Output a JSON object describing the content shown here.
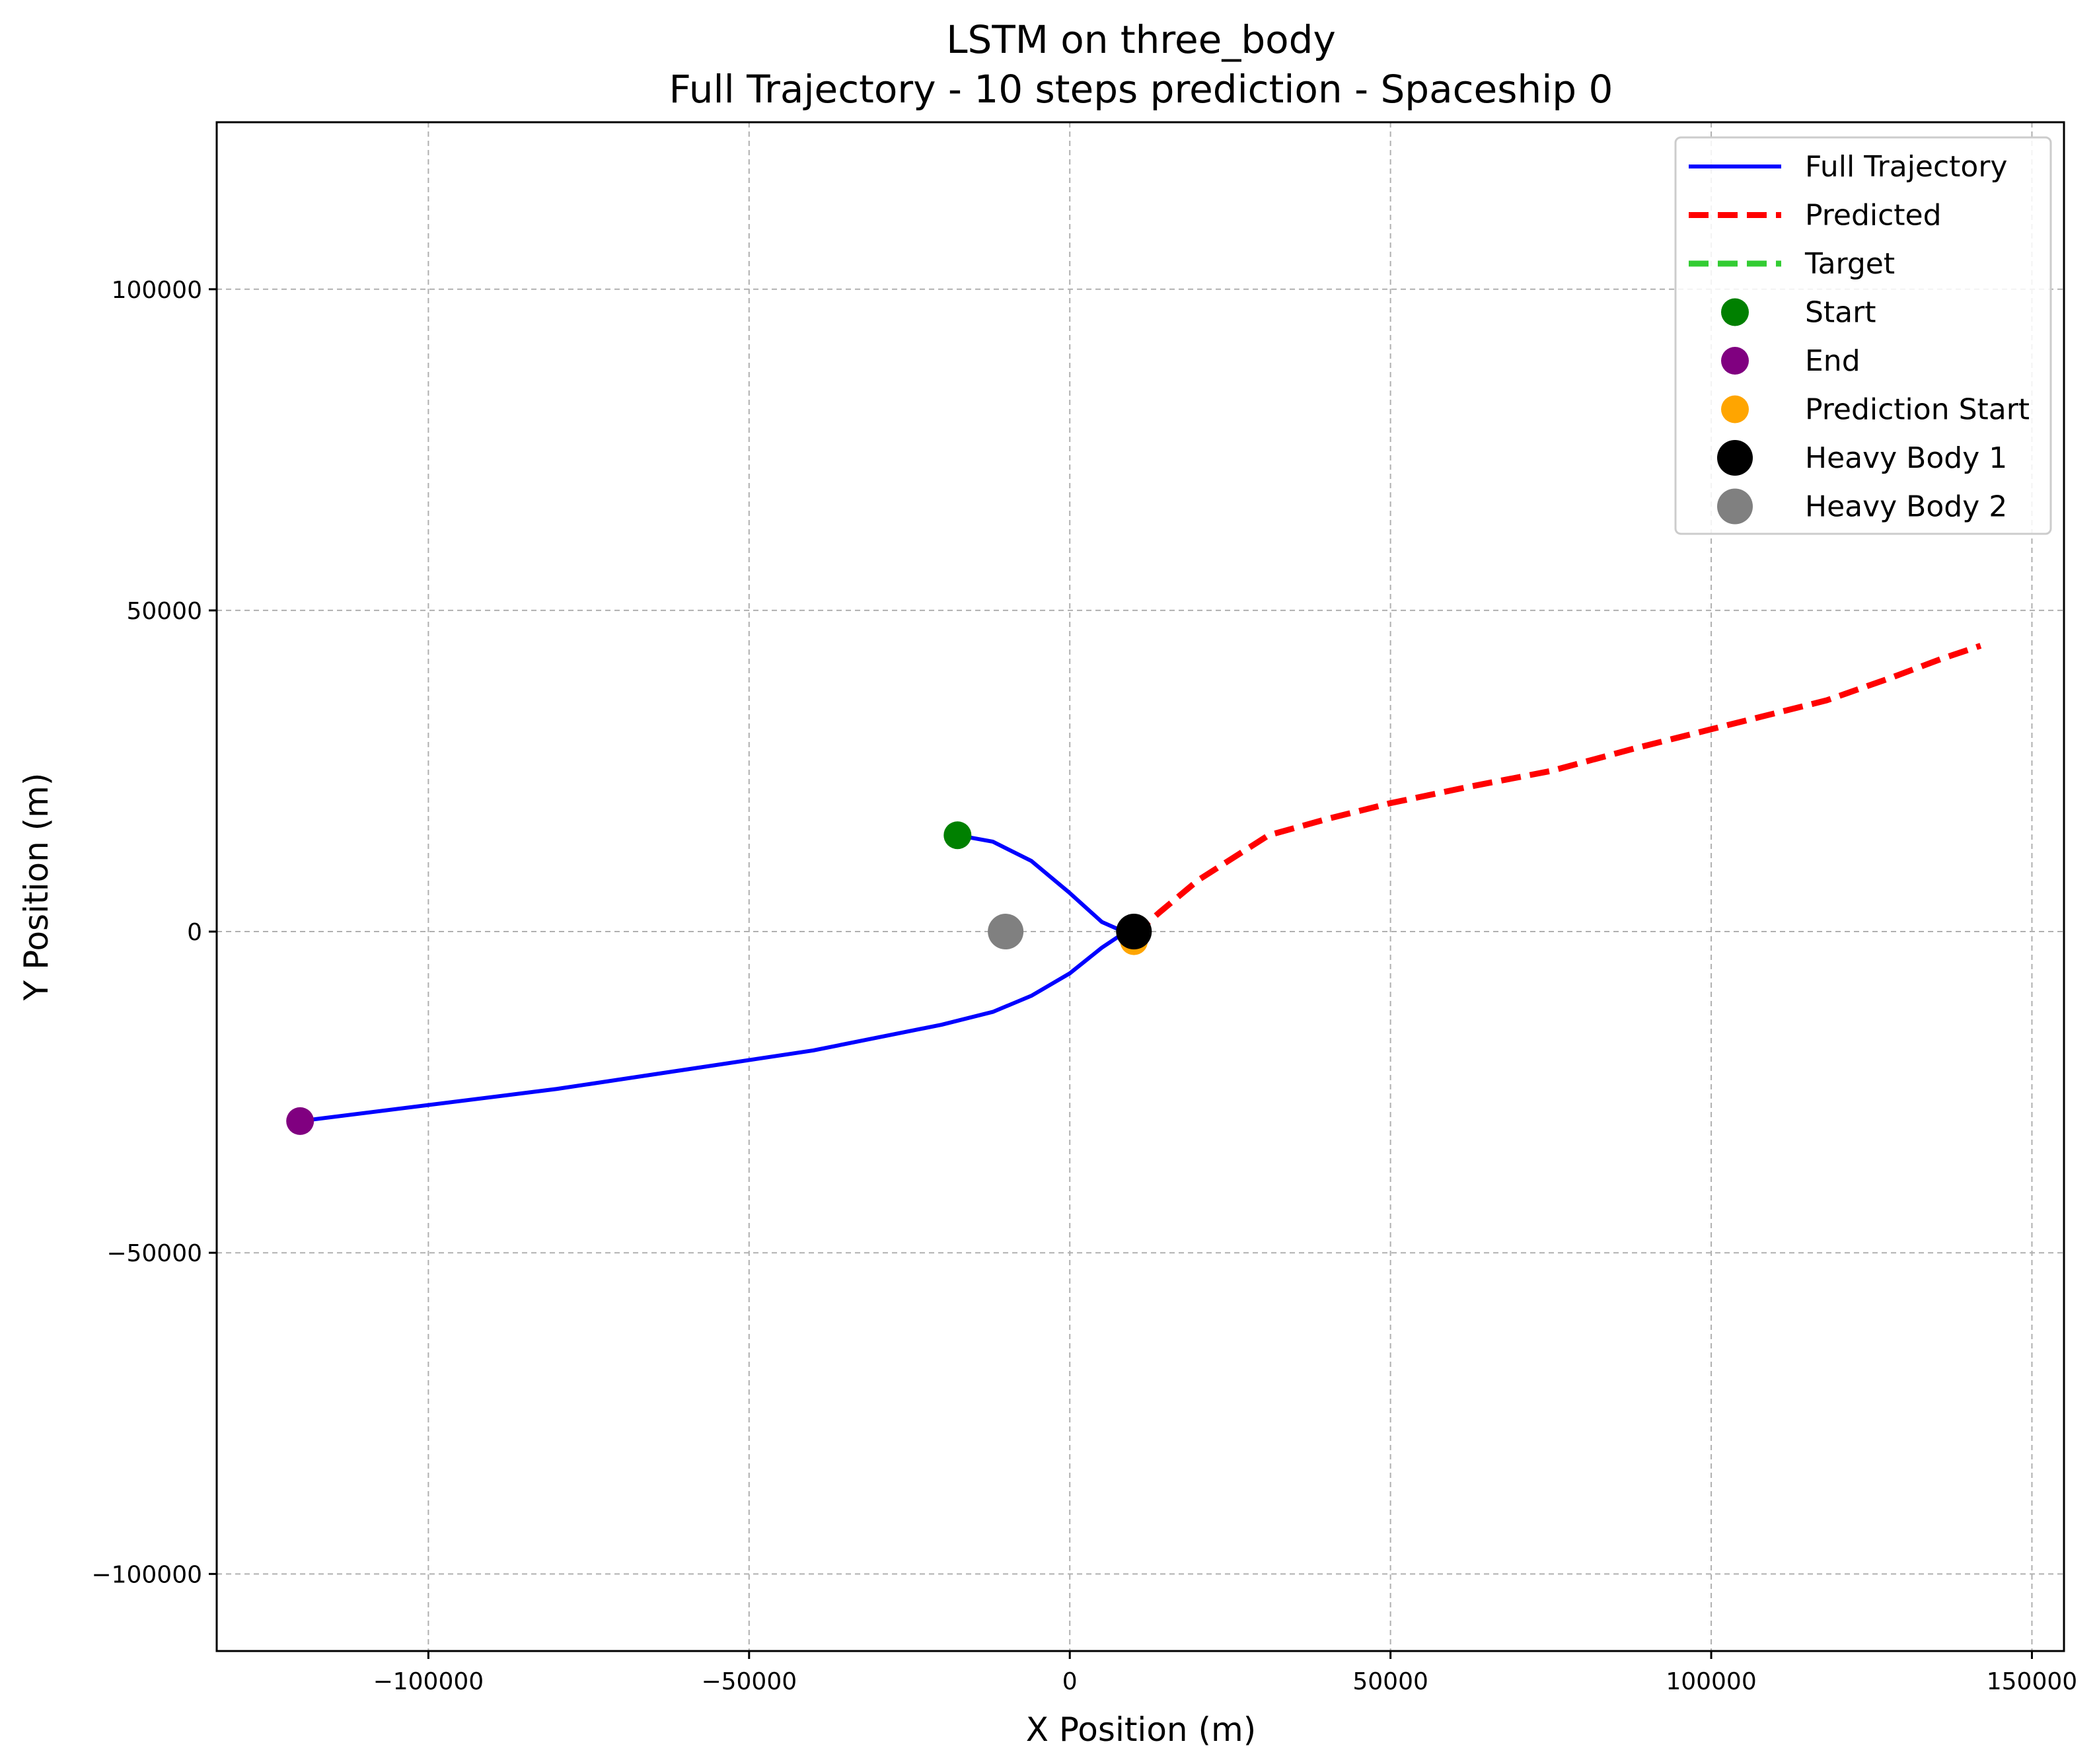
{
  "chart_data": {
    "type": "line",
    "title": "LSTM on three_body",
    "subtitle": "Full Trajectory - 10 steps prediction - Spaceship 0",
    "xlabel": "X Position (m)",
    "ylabel": "Y Position (m)",
    "xlim": [
      -133000,
      155000
    ],
    "ylim": [
      -112000,
      126000
    ],
    "grid": true,
    "legend_position": "top-right",
    "x_ticks": [
      -100000,
      -50000,
      0,
      50000,
      100000,
      150000
    ],
    "y_ticks": [
      -100000,
      -50000,
      0,
      50000,
      100000
    ],
    "x_tick_labels": [
      "−100000",
      "−50000",
      "0",
      "50000",
      "100000",
      "150000"
    ],
    "y_tick_labels": [
      "−100000",
      "−50000",
      "0",
      "50000",
      "100000"
    ],
    "series": [
      {
        "name": "Full Trajectory",
        "kind": "line",
        "color": "#0000ff",
        "dash": "solid",
        "x": [
          -17500,
          -12000,
          -6000,
          0,
          5000,
          9500,
          10000,
          9500,
          5000,
          0,
          -6000,
          -12000,
          -20000,
          -40000,
          -60000,
          -80000,
          -100000,
          -120000
        ],
        "y": [
          15000,
          14000,
          11000,
          6000,
          1500,
          -500,
          0,
          500,
          -2500,
          -6500,
          -10000,
          -12500,
          -14500,
          -18500,
          -21500,
          -24500,
          -27000,
          -29500
        ]
      },
      {
        "name": "Predicted",
        "kind": "line",
        "color": "#ff0000",
        "dash": "dashed",
        "x": [
          10000,
          14000,
          20000,
          31000,
          40000,
          50000,
          62000,
          75000,
          88000,
          100000,
          110000,
          118000,
          128000,
          136000,
          142000
        ],
        "y": [
          -500,
          3000,
          8000,
          15000,
          17500,
          20000,
          22500,
          25000,
          28500,
          31500,
          34000,
          36000,
          39500,
          42500,
          44500
        ]
      },
      {
        "name": "Target",
        "kind": "line",
        "color": "#33cc33",
        "dash": "dashed",
        "x": [],
        "y": []
      }
    ],
    "points": [
      {
        "name": "Start",
        "color": "#008000",
        "x": -17500,
        "y": 15000,
        "size": "medium"
      },
      {
        "name": "End",
        "color": "#800080",
        "x": -120000,
        "y": -29500,
        "size": "medium"
      },
      {
        "name": "Prediction Start",
        "color": "#ffa500",
        "x": 10000,
        "y": -1500,
        "size": "medium"
      },
      {
        "name": "Heavy Body 1",
        "color": "#000000",
        "x": 10000,
        "y": 0,
        "size": "large"
      },
      {
        "name": "Heavy Body 2",
        "color": "#808080",
        "x": -10000,
        "y": 0,
        "size": "large"
      }
    ],
    "legend": [
      {
        "label": "Full Trajectory",
        "kind": "line",
        "color": "#0000ff",
        "dash": "solid"
      },
      {
        "label": "Predicted",
        "kind": "line",
        "color": "#ff0000",
        "dash": "dashed"
      },
      {
        "label": "Target",
        "kind": "line",
        "color": "#33cc33",
        "dash": "dashed"
      },
      {
        "label": "Start",
        "kind": "marker",
        "color": "#008000",
        "size": "medium"
      },
      {
        "label": "End",
        "kind": "marker",
        "color": "#800080",
        "size": "medium"
      },
      {
        "label": "Prediction Start",
        "kind": "marker",
        "color": "#ffa500",
        "size": "medium"
      },
      {
        "label": "Heavy Body 1",
        "kind": "marker",
        "color": "#000000",
        "size": "large"
      },
      {
        "label": "Heavy Body 2",
        "kind": "marker",
        "color": "#808080",
        "size": "large"
      }
    ]
  }
}
